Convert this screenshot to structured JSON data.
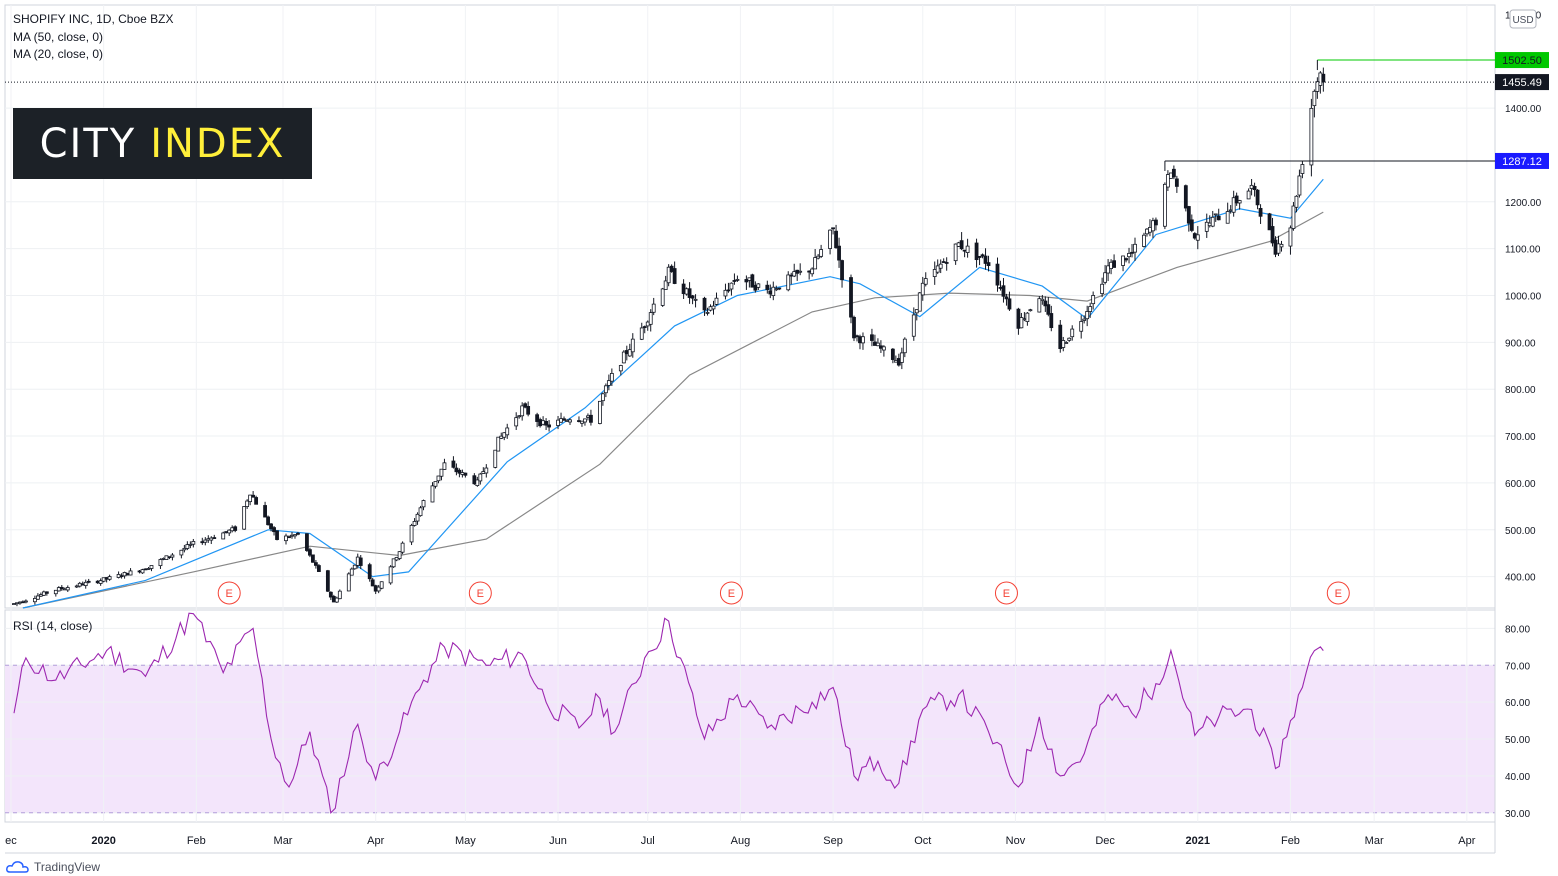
{
  "header": {
    "symbol_line": "SHOPIFY INC, 1D, Cboe BZX",
    "ma50_label": "MA (50, close, 0)",
    "ma20_label": "MA (20, close, 0)"
  },
  "logo": {
    "part1": "CITY",
    "part2": "INDEX"
  },
  "currency_badge": "USD",
  "rsi_label": "RSI (14, close)",
  "footer": {
    "brand": "TradingView"
  },
  "colors": {
    "up": "#ffffff",
    "down": "#131722",
    "ma20": "#2196f3",
    "ma50": "#888888",
    "rsi": "#9c27b0",
    "rsi_band": "#f3e5fb",
    "resistance_high": "#00c800",
    "resistance_prior": "#1a1aff",
    "earnings": "#f44336"
  },
  "chart_data": [
    {
      "type": "candlestick",
      "title": "SHOPIFY INC, 1D, Cboe BZX",
      "x_axis_labels": [
        "ec",
        "2020",
        "Feb",
        "Mar",
        "Apr",
        "May",
        "Jun",
        "Jul",
        "Aug",
        "Sep",
        "Oct",
        "Nov",
        "Dec",
        "2021",
        "Feb",
        "Mar",
        "Apr"
      ],
      "y_ticks": [
        400,
        500,
        600,
        700,
        800,
        900,
        1000,
        1100,
        1200,
        1400
      ],
      "ylim": [
        333,
        1620
      ],
      "price_points": [
        [
          "2019-12-02",
          342
        ],
        [
          "2019-12-16",
          372
        ],
        [
          "2020-01-02",
          395
        ],
        [
          "2020-01-15",
          418
        ],
        [
          "2020-01-31",
          470
        ],
        [
          "2020-02-14",
          502
        ],
        [
          "2020-02-19",
          580
        ],
        [
          "2020-02-28",
          480
        ],
        [
          "2020-03-06",
          490
        ],
        [
          "2020-03-12",
          420
        ],
        [
          "2020-03-18",
          345
        ],
        [
          "2020-03-26",
          440
        ],
        [
          "2020-04-01",
          370
        ],
        [
          "2020-04-09",
          455
        ],
        [
          "2020-04-17",
          560
        ],
        [
          "2020-04-24",
          640
        ],
        [
          "2020-05-05",
          600
        ],
        [
          "2020-05-12",
          690
        ],
        [
          "2020-05-20",
          760
        ],
        [
          "2020-05-28",
          720
        ],
        [
          "2020-06-05",
          740
        ],
        [
          "2020-06-12",
          735
        ],
        [
          "2020-06-20",
          840
        ],
        [
          "2020-06-30",
          940
        ],
        [
          "2020-07-08",
          1050
        ],
        [
          "2020-07-20",
          960
        ],
        [
          "2020-07-31",
          1040
        ],
        [
          "2020-08-10",
          1010
        ],
        [
          "2020-08-25",
          1060
        ],
        [
          "2020-09-01",
          1140
        ],
        [
          "2020-09-08",
          915
        ],
        [
          "2020-09-16",
          890
        ],
        [
          "2020-09-23",
          860
        ],
        [
          "2020-10-01",
          1020
        ],
        [
          "2020-10-13",
          1110
        ],
        [
          "2020-10-23",
          1070
        ],
        [
          "2020-11-02",
          940
        ],
        [
          "2020-11-09",
          1000
        ],
        [
          "2020-11-16",
          890
        ],
        [
          "2020-11-24",
          960
        ],
        [
          "2020-12-02",
          1060
        ],
        [
          "2020-12-10",
          1090
        ],
        [
          "2020-12-18",
          1160
        ],
        [
          "2020-12-23",
          1270
        ],
        [
          "2020-12-31",
          1130
        ],
        [
          "2021-01-08",
          1170
        ],
        [
          "2021-01-19",
          1230
        ],
        [
          "2021-01-27",
          1100
        ],
        [
          "2021-02-01",
          1150
        ],
        [
          "2021-02-05",
          1290
        ],
        [
          "2021-02-09",
          1440
        ],
        [
          "2021-02-11",
          1480
        ],
        [
          "2021-02-12",
          1455
        ]
      ],
      "ma20_points": [
        [
          "2019-12-05",
          333
        ],
        [
          "2020-01-15",
          392
        ],
        [
          "2020-02-25",
          500
        ],
        [
          "2020-03-10",
          492
        ],
        [
          "2020-03-31",
          400
        ],
        [
          "2020-04-12",
          410
        ],
        [
          "2020-05-15",
          645
        ],
        [
          "2020-06-10",
          760
        ],
        [
          "2020-07-10",
          935
        ],
        [
          "2020-07-31",
          1000
        ],
        [
          "2020-08-31",
          1040
        ],
        [
          "2020-09-10",
          1025
        ],
        [
          "2020-09-30",
          955
        ],
        [
          "2020-10-20",
          1060
        ],
        [
          "2020-11-10",
          1020
        ],
        [
          "2020-11-25",
          950
        ],
        [
          "2020-12-18",
          1130
        ],
        [
          "2021-01-15",
          1185
        ],
        [
          "2021-02-01",
          1165
        ],
        [
          "2021-02-12",
          1248
        ]
      ],
      "ma50_points": [
        [
          "2019-12-05",
          333
        ],
        [
          "2020-01-31",
          410
        ],
        [
          "2020-03-10",
          465
        ],
        [
          "2020-04-09",
          445
        ],
        [
          "2020-05-08",
          480
        ],
        [
          "2020-06-15",
          640
        ],
        [
          "2020-07-15",
          830
        ],
        [
          "2020-08-25",
          965
        ],
        [
          "2020-09-15",
          995
        ],
        [
          "2020-10-10",
          1005
        ],
        [
          "2020-11-06",
          1000
        ],
        [
          "2020-11-25",
          988
        ],
        [
          "2020-12-25",
          1060
        ],
        [
          "2021-01-25",
          1115
        ],
        [
          "2021-02-12",
          1178
        ]
      ],
      "annotations": {
        "last_price": "1455.49",
        "recent_high": "1502.50",
        "prior_high": "1287.12",
        "earnings_marker": "E",
        "earnings_dates": [
          "2020-02-12",
          "2020-05-06",
          "2020-07-29",
          "2020-10-29",
          "2021-02-17"
        ]
      }
    },
    {
      "type": "line",
      "title": "RSI (14, close)",
      "y_ticks": [
        30,
        40,
        50,
        60,
        70,
        80
      ],
      "ylim": [
        27.5,
        85
      ],
      "band": [
        30,
        70
      ],
      "rsi_points": [
        [
          "2019-12-02",
          57
        ],
        [
          "2019-12-06",
          72
        ],
        [
          "2019-12-16",
          66
        ],
        [
          "2020-01-02",
          74
        ],
        [
          "2020-01-15",
          67
        ],
        [
          "2020-01-31",
          84
        ],
        [
          "2020-02-10",
          68
        ],
        [
          "2020-02-20",
          80
        ],
        [
          "2020-02-26",
          50
        ],
        [
          "2020-03-03",
          37
        ],
        [
          "2020-03-10",
          52
        ],
        [
          "2020-03-17",
          30
        ],
        [
          "2020-03-26",
          54
        ],
        [
          "2020-04-01",
          39
        ],
        [
          "2020-04-09",
          52
        ],
        [
          "2020-04-17",
          66
        ],
        [
          "2020-04-24",
          75
        ],
        [
          "2020-05-08",
          70
        ],
        [
          "2020-05-20",
          73
        ],
        [
          "2020-05-28",
          60
        ],
        [
          "2020-06-08",
          53
        ],
        [
          "2020-06-15",
          61
        ],
        [
          "2020-06-20",
          52
        ],
        [
          "2020-06-30",
          72
        ],
        [
          "2020-07-08",
          82
        ],
        [
          "2020-07-20",
          50
        ],
        [
          "2020-07-31",
          62
        ],
        [
          "2020-08-10",
          53
        ],
        [
          "2020-08-25",
          60
        ],
        [
          "2020-09-01",
          64
        ],
        [
          "2020-09-08",
          40
        ],
        [
          "2020-09-16",
          44
        ],
        [
          "2020-09-23",
          38
        ],
        [
          "2020-10-01",
          58
        ],
        [
          "2020-10-13",
          62
        ],
        [
          "2020-10-23",
          52
        ],
        [
          "2020-11-02",
          37
        ],
        [
          "2020-11-09",
          56
        ],
        [
          "2020-11-16",
          40
        ],
        [
          "2020-11-24",
          46
        ],
        [
          "2020-12-02",
          62
        ],
        [
          "2020-12-10",
          57
        ],
        [
          "2020-12-18",
          65
        ],
        [
          "2020-12-23",
          74
        ],
        [
          "2020-12-31",
          51
        ],
        [
          "2021-01-08",
          56
        ],
        [
          "2021-01-19",
          58
        ],
        [
          "2021-01-27",
          42
        ],
        [
          "2021-02-01",
          55
        ],
        [
          "2021-02-05",
          64
        ],
        [
          "2021-02-09",
          74
        ],
        [
          "2021-02-11",
          75
        ],
        [
          "2021-02-12",
          74
        ]
      ]
    }
  ]
}
